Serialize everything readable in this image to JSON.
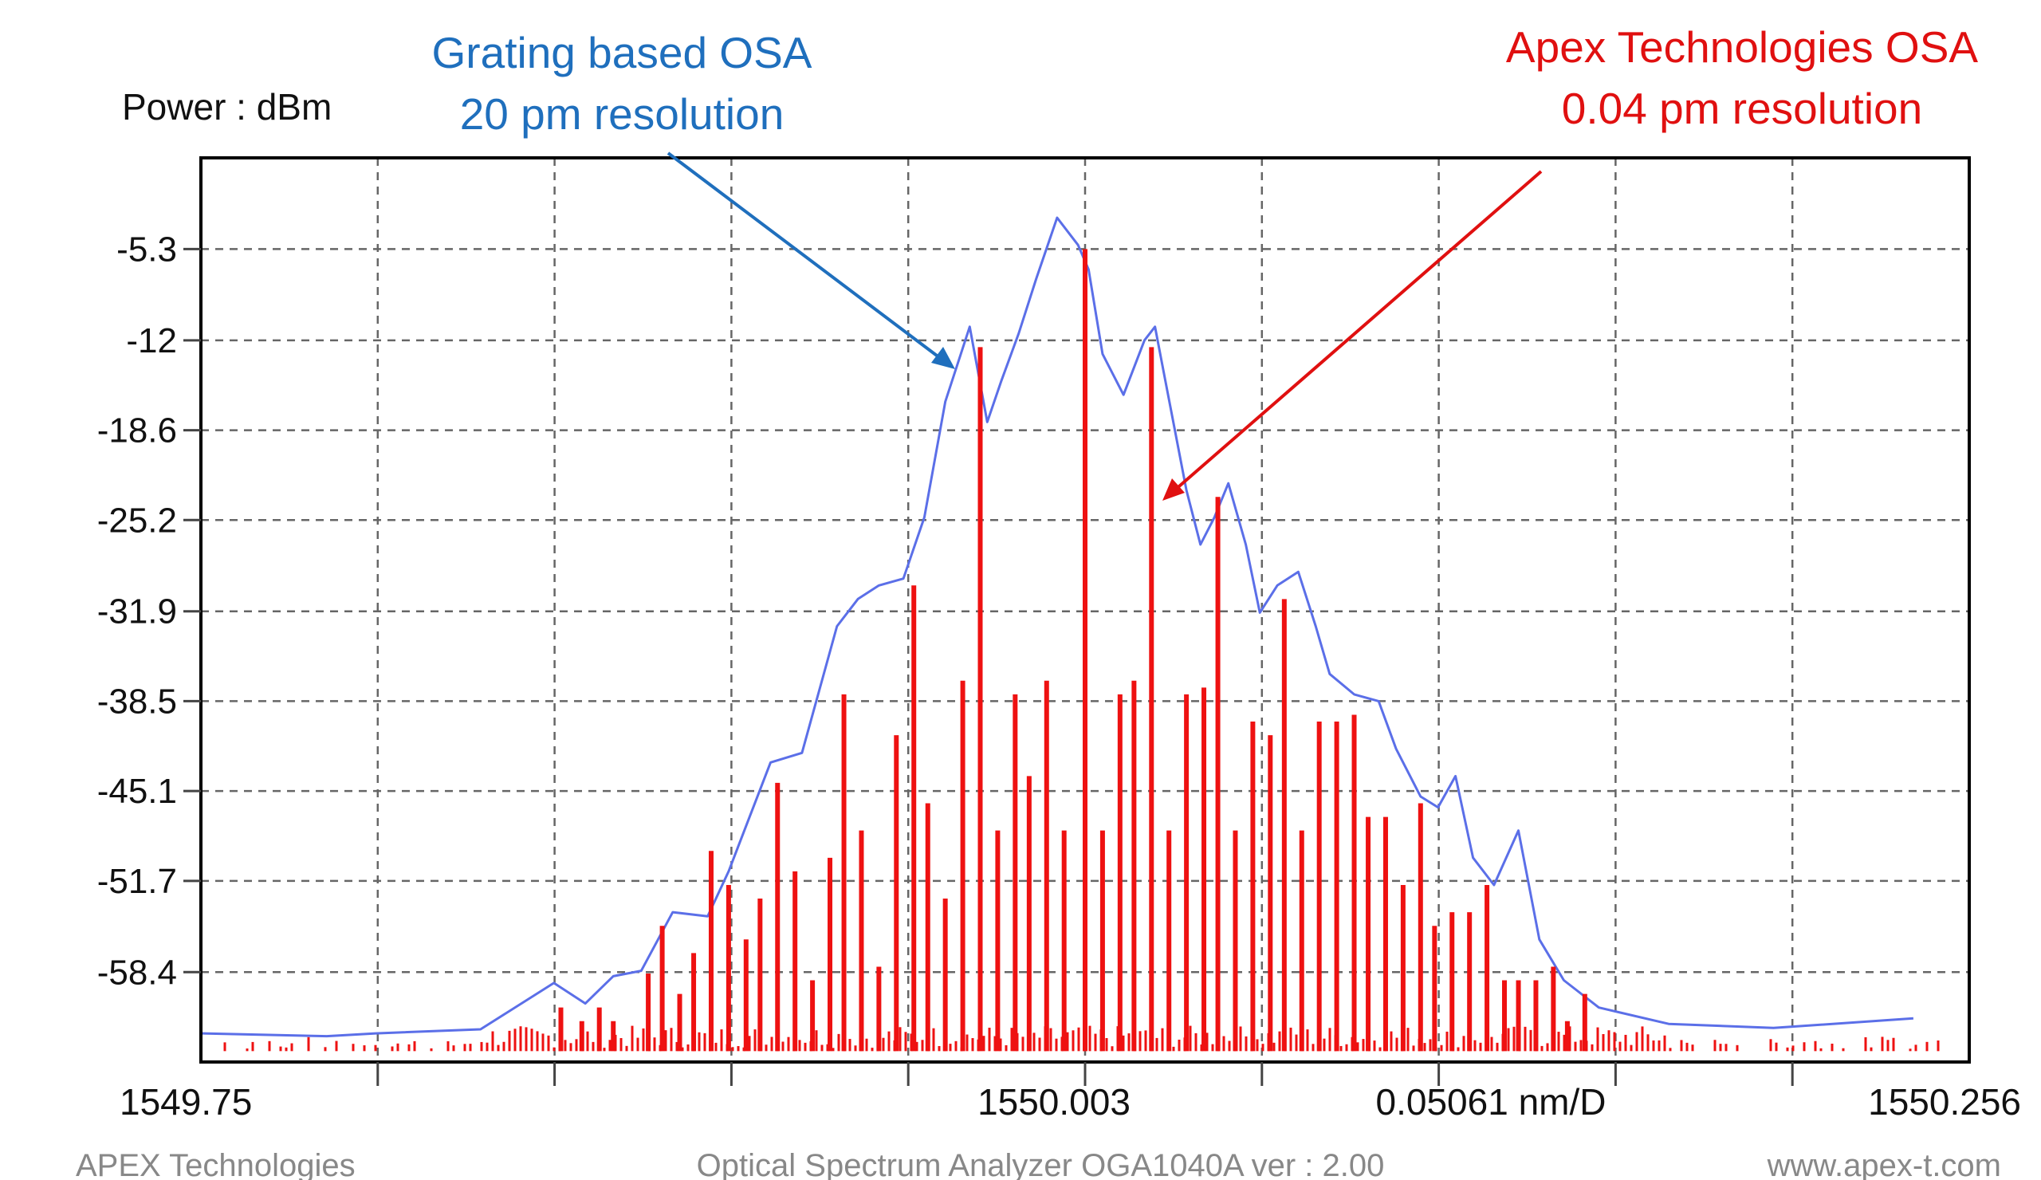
{
  "chart_data": {
    "type": "line",
    "ylabel": "Power : dBm",
    "yticks": [
      "-5.3",
      "-12",
      "-18.6",
      "-25.2",
      "-31.9",
      "-38.5",
      "-45.1",
      "-51.7",
      "-58.4"
    ],
    "ytick_values": [
      -5.3,
      -12,
      -18.6,
      -25.2,
      -31.9,
      -38.5,
      -45.1,
      -51.7,
      -58.4
    ],
    "ylim": [
      -65.0,
      1.4
    ],
    "xlim": [
      1549.75,
      1550.256
    ],
    "xlabels": {
      "start": "1549.75",
      "center": "1550.003",
      "span": "0.05061 nm/D",
      "end": "1550.256"
    },
    "grid": true,
    "series": [
      {
        "name": "Grating based OSA 20 pm resolution",
        "color": "#5b6fe8",
        "x": [
          1549.75,
          1549.786,
          1549.8,
          1549.83,
          1549.851,
          1549.86,
          1549.868,
          1549.876,
          1549.885,
          1549.895,
          1549.901,
          1549.907,
          1549.913,
          1549.922,
          1549.932,
          1549.938,
          1549.944,
          1549.951,
          1549.957,
          1549.963,
          1549.97,
          1549.975,
          1549.979,
          1549.984,
          1549.989,
          1549.995,
          1550.001,
          1550.004,
          1550.008,
          1550.014,
          1550.02,
          1550.023,
          1550.026,
          1550.032,
          1550.036,
          1550.04,
          1550.044,
          1550.049,
          1550.053,
          1550.058,
          1550.064,
          1550.069,
          1550.073,
          1550.08,
          1550.087,
          1550.092,
          1550.099,
          1550.104,
          1550.109,
          1550.114,
          1550.12,
          1550.127,
          1550.133,
          1550.14,
          1550.15,
          1550.17,
          1550.2,
          1550.24
        ],
        "y": [
          -62.9,
          -63.1,
          -62.9,
          -62.6,
          -59.2,
          -60.7,
          -58.7,
          -58.3,
          -54.0,
          -54.3,
          -51.0,
          -47.0,
          -43.0,
          -42.3,
          -33.0,
          -31.0,
          -30.0,
          -29.5,
          -25.0,
          -16.5,
          -11.0,
          -18.0,
          -15.0,
          -11.5,
          -7.5,
          -3.0,
          -5.0,
          -6.8,
          -13.0,
          -16.0,
          -12.0,
          -11.0,
          -15.0,
          -23.0,
          -27.0,
          -25.0,
          -22.5,
          -27.0,
          -32.0,
          -30.0,
          -29.0,
          -33.0,
          -36.5,
          -38.0,
          -38.5,
          -42.0,
          -45.5,
          -46.3,
          -44.0,
          -50.0,
          -52.0,
          -48.0,
          -56.0,
          -59.0,
          -61.0,
          -62.2,
          -62.5,
          -61.8
        ]
      },
      {
        "name": "Apex Technologies OSA 0.04 pm resolution",
        "color": "#ee1111",
        "x": [
          1549.853,
          1549.859,
          1549.864,
          1549.868,
          1549.878,
          1549.882,
          1549.887,
          1549.891,
          1549.896,
          1549.901,
          1549.906,
          1549.91,
          1549.915,
          1549.92,
          1549.925,
          1549.93,
          1549.934,
          1549.939,
          1549.944,
          1549.949,
          1549.954,
          1549.958,
          1549.963,
          1549.968,
          1549.973,
          1549.978,
          1549.983,
          1549.987,
          1549.992,
          1549.997,
          1550.003,
          1550.008,
          1550.013,
          1550.017,
          1550.022,
          1550.027,
          1550.032,
          1550.037,
          1550.041,
          1550.046,
          1550.051,
          1550.056,
          1550.06,
          1550.065,
          1550.07,
          1550.075,
          1550.08,
          1550.084,
          1550.089,
          1550.094,
          1550.099,
          1550.103,
          1550.108,
          1550.113,
          1550.118,
          1550.123,
          1550.127,
          1550.132,
          1550.137,
          1550.141,
          1550.146
        ],
        "y": [
          -61.0,
          -62.0,
          -61.0,
          -62.0,
          -58.5,
          -55.0,
          -60.0,
          -57.0,
          -49.5,
          -52.0,
          -56.0,
          -53.0,
          -44.5,
          -51.0,
          -59.0,
          -50.0,
          -38.0,
          -48.0,
          -58.0,
          -41.0,
          -30.0,
          -46.0,
          -53.0,
          -37.0,
          -12.5,
          -48.0,
          -38.0,
          -44.0,
          -37.0,
          -48.0,
          -5.3,
          -48.0,
          -38.0,
          -37.0,
          -12.5,
          -48.0,
          -38.0,
          -37.5,
          -23.5,
          -48.0,
          -40.0,
          -41.0,
          -31.0,
          -48.0,
          -40.0,
          -40.0,
          -39.5,
          -47.0,
          -47.0,
          -52.0,
          -46.0,
          -55.0,
          -54.0,
          -54.0,
          -52.0,
          -59.0,
          -59.0,
          -59.0,
          -58.0,
          -62.0,
          -60.0
        ]
      }
    ]
  },
  "annotations": {
    "grating_line1": "Grating based OSA",
    "grating_line2": "20 pm resolution",
    "apex_line1": "Apex Technologies OSA",
    "apex_line2": "0.04 pm resolution",
    "grating_color": "#1f6fbd",
    "apex_color": "#e01010"
  },
  "footer": {
    "left": "APEX Technologies",
    "center": "Optical Spectrum Analyzer OGA1040A  ver : 2.00",
    "right": "www.apex-t.com"
  }
}
